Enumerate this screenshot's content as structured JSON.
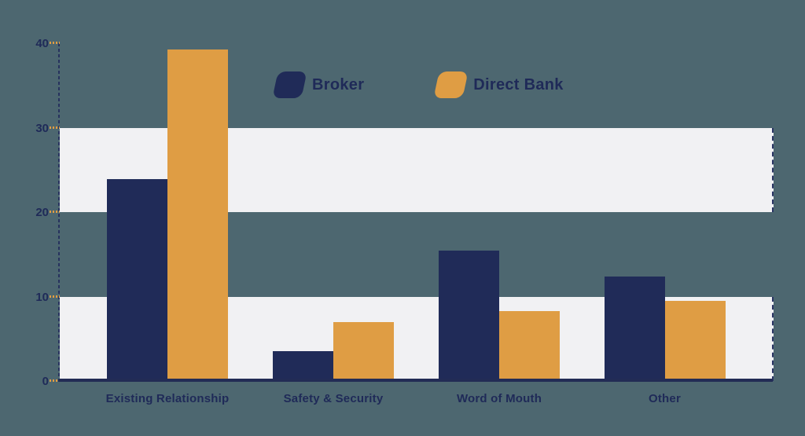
{
  "background_color": "#4D6770",
  "chart_data": {
    "type": "bar",
    "title": "",
    "xlabel": "",
    "ylabel": "",
    "categories": [
      "Existing Relationship",
      "Safety & Security",
      "Word of Mouth",
      "Other"
    ],
    "series": [
      {
        "name": "Broker",
        "color": "#202B58",
        "values": [
          23.9,
          3.5,
          15.4,
          12.4
        ]
      },
      {
        "name": "Direct Bank",
        "color": "#DF9D44",
        "values": [
          39.3,
          7.0,
          8.3,
          9.5
        ]
      }
    ],
    "ylim": [
      0,
      40
    ],
    "yticks": [
      0,
      10,
      20,
      30,
      40
    ],
    "grid": "horizontal-bands",
    "grid_bands": [
      [
        0,
        10
      ],
      [
        20,
        30
      ]
    ],
    "band_color": "#F1F1F3",
    "band_edge_color": "#2A3564",
    "axis_color": "#27325E",
    "baseline_color": "#222C55",
    "tick_dash_color": "#DF9D44",
    "label_color": "#1F2A58",
    "legend_position": "top-center"
  }
}
